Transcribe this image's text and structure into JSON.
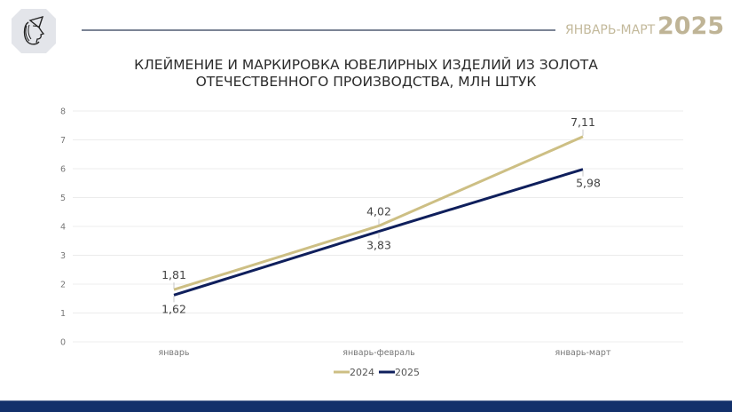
{
  "header": {
    "logo_icon": "female-profile-helmet-icon",
    "period": "ЯНВАРЬ-МАРТ",
    "year": "2025"
  },
  "title": {
    "line1": "КЛЕЙМЕНИЕ И МАРКИРОВКА ЮВЕЛИРНЫХ ИЗДЕЛИЙ ИЗ ЗОЛОТА",
    "line2": "ОТЕЧЕСТВЕННОГО ПРОИЗВОДСТВА, МЛН ШТУК"
  },
  "colors": {
    "series_2024": "#cdbf84",
    "series_2025": "#0f1f5c",
    "grid": "#ececec",
    "tick_text": "#777777",
    "label_text": "#444444",
    "footer": "#13306b"
  },
  "chart_data": {
    "type": "line",
    "title": "КЛЕЙМЕНИЕ И МАРКИРОВКА ЮВЕЛИРНЫХ ИЗДЕЛИЙ ИЗ ЗОЛОТА ОТЕЧЕСТВЕННОГО ПРОИЗВОДСТВА, МЛН ШТУК",
    "categories": [
      "январь",
      "январь-февраль",
      "январь-март"
    ],
    "series": [
      {
        "name": "2024",
        "values": [
          1.81,
          4.02,
          7.11
        ],
        "labels": [
          "1,81",
          "4,02",
          "7,11"
        ],
        "color": "#cdbf84"
      },
      {
        "name": "2025",
        "values": [
          1.62,
          3.83,
          5.98
        ],
        "labels": [
          "1,62",
          "3,83",
          "5,98"
        ],
        "color": "#0f1f5c"
      }
    ],
    "xlabel": "",
    "ylabel": "",
    "ylim": [
      0,
      8
    ],
    "yticks": [
      "0",
      "1",
      "2",
      "3",
      "4",
      "5",
      "6",
      "7",
      "8"
    ],
    "grid": true,
    "legend_position": "bottom"
  }
}
